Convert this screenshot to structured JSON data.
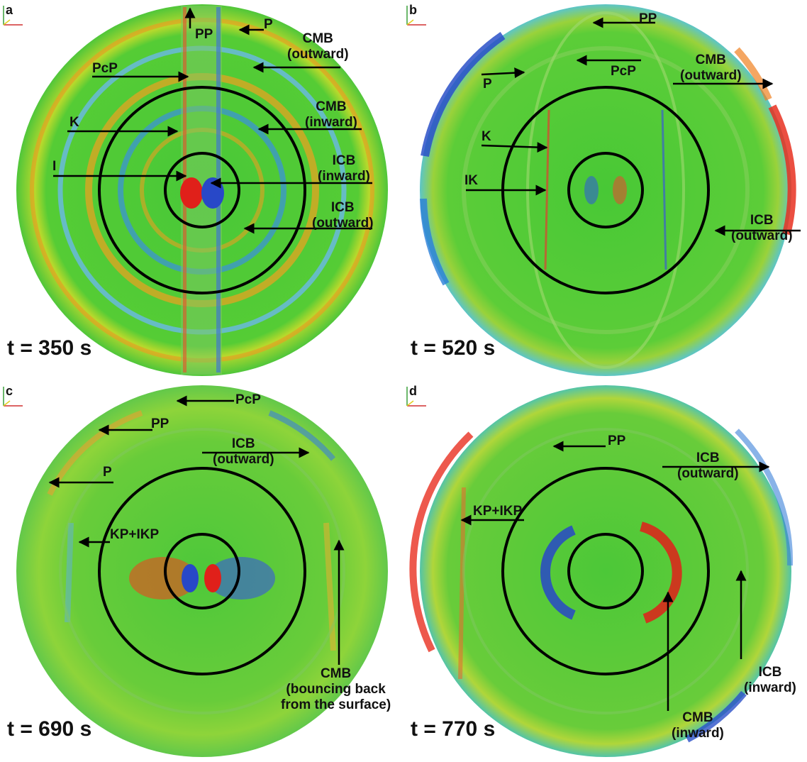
{
  "panels": {
    "a": {
      "letter": "a",
      "time": "t = 350 s",
      "labels": {
        "pp": "PP",
        "p": "P",
        "pcp": "PcP",
        "cmb_out": "CMB\n(outward)",
        "k": "K",
        "cmb_in": "CMB\n(inward)",
        "i": "I",
        "icb_in": "ICB\n(inward)",
        "icb_out": "ICB\n(outward)"
      }
    },
    "b": {
      "letter": "b",
      "time": "t = 520 s",
      "labels": {
        "pp": "PP",
        "pcp": "PcP",
        "cmb_out": "CMB\n(outward)",
        "p": "P",
        "k": "K",
        "ik": "IK",
        "icb_out": "ICB\n(outward)"
      }
    },
    "c": {
      "letter": "c",
      "time": "t = 690 s",
      "labels": {
        "pcp": "PcP",
        "pp": "PP",
        "icb_out": "ICB\n(outward)",
        "p": "P",
        "kp_ikp": "KP+IKP",
        "cmb_bounce": "CMB\n(bouncing back\nfrom the surface)"
      }
    },
    "d": {
      "letter": "d",
      "time": "t = 770 s",
      "labels": {
        "pp": "PP",
        "icb_out": "ICB\n(outward)",
        "kp_ikp": "KP+IKP",
        "icb_in": "ICB\n(inward)",
        "cmb_in": "CMB\n(inward)"
      }
    }
  },
  "colors": {
    "background_field": "#3ec832",
    "positive": "#e0201a",
    "negative": "#2848c8",
    "boundary_circles": "#000000",
    "arrows": "#000000"
  }
}
